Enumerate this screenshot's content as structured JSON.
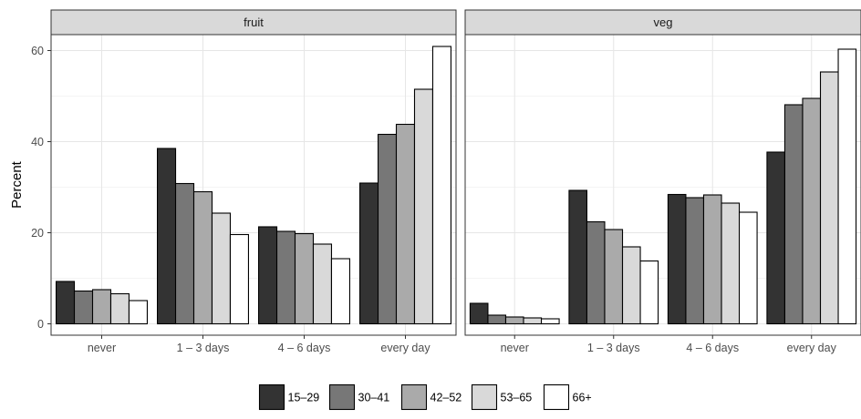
{
  "chart_data": {
    "type": "bar",
    "facets": [
      "fruit",
      "veg"
    ],
    "categories": [
      "never",
      "1 – 3 days",
      "4 – 6 days",
      "every day"
    ],
    "ylabel": "Percent",
    "ylim": [
      -2.5,
      63.5
    ],
    "yticks": [
      0,
      20,
      40,
      60
    ],
    "grid": true,
    "legend_position": "bottom",
    "series": [
      {
        "name": "15–29",
        "color": "#333333",
        "values": {
          "fruit": [
            9.3,
            38.5,
            21.3,
            30.9
          ],
          "veg": [
            4.5,
            29.3,
            28.4,
            37.7
          ]
        }
      },
      {
        "name": "30–41",
        "color": "#777777",
        "values": {
          "fruit": [
            7.2,
            30.8,
            20.3,
            41.6
          ],
          "veg": [
            1.9,
            22.4,
            27.7,
            48.1
          ]
        }
      },
      {
        "name": "42–52",
        "color": "#aaaaaa",
        "values": {
          "fruit": [
            7.5,
            29.0,
            19.8,
            43.8
          ],
          "veg": [
            1.5,
            20.7,
            28.3,
            49.5
          ]
        }
      },
      {
        "name": "53–65",
        "color": "#d9d9d9",
        "values": {
          "fruit": [
            6.6,
            24.3,
            17.5,
            51.5
          ],
          "veg": [
            1.3,
            16.9,
            26.5,
            55.3
          ]
        }
      },
      {
        "name": "66+",
        "color": "#ffffff",
        "values": {
          "fruit": [
            5.1,
            19.6,
            14.3,
            60.9
          ],
          "veg": [
            1.1,
            13.8,
            24.5,
            60.3
          ]
        }
      }
    ]
  }
}
